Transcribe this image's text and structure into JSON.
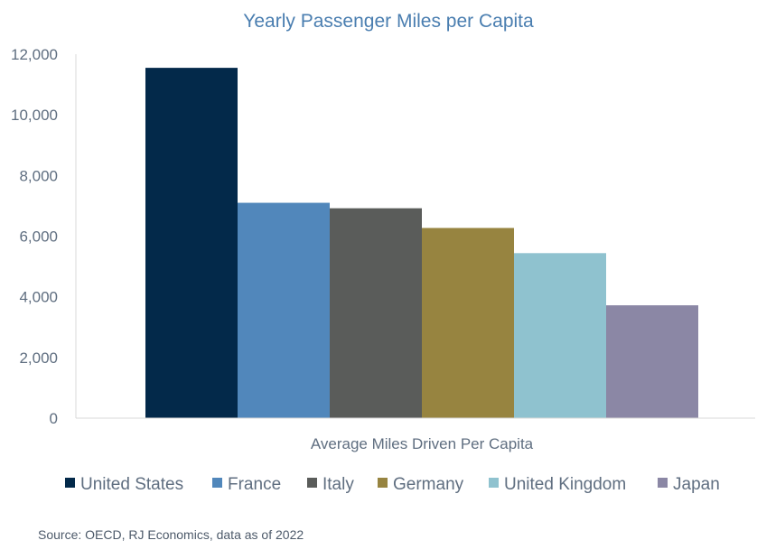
{
  "chart_data": {
    "type": "bar",
    "title": "Yearly Passenger Miles per Capita",
    "categories": [
      "Average Miles Driven Per Capita"
    ],
    "series": [
      {
        "name": "United States",
        "values": [
          11550
        ],
        "color": "#03294a"
      },
      {
        "name": "France",
        "values": [
          7100
        ],
        "color": "#5187bb"
      },
      {
        "name": "Italy",
        "values": [
          6920
        ],
        "color": "#5a5c5a"
      },
      {
        "name": "Germany",
        "values": [
          6270
        ],
        "color": "#978440"
      },
      {
        "name": "United Kingdom",
        "values": [
          5440
        ],
        "color": "#8fc2cf"
      },
      {
        "name": "Japan",
        "values": [
          3720
        ],
        "color": "#8b87a5"
      }
    ],
    "ylim": [
      0,
      12000
    ],
    "yticks": [
      0,
      2000,
      4000,
      6000,
      8000,
      10000,
      12000
    ],
    "ytick_labels": [
      "0",
      "2,000",
      "4,000",
      "6,000",
      "8,000",
      "10,000",
      "12,000"
    ],
    "grid": false,
    "legend_position": "bottom"
  },
  "source_note": "Source: OECD, RJ Economics, data as of 2022"
}
